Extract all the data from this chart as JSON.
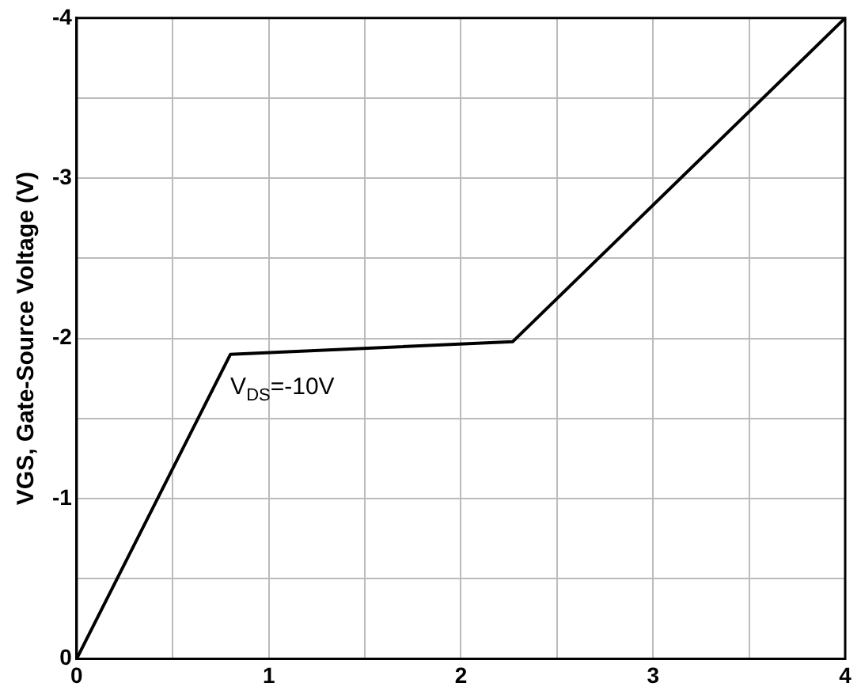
{
  "chart_data": {
    "type": "line",
    "ylabel": "VGS, Gate-Source Voltage (V)",
    "x": [
      0,
      0.8,
      2.27,
      4
    ],
    "series": [
      {
        "color": "#000000",
        "values": [
          0,
          -1.9,
          -1.98,
          -4
        ]
      }
    ],
    "xlim": [
      0,
      4
    ],
    "ylim": [
      0,
      -4
    ],
    "xticks": [
      0,
      {
        "value": 0.5,
        "label": null
      },
      1,
      {
        "value": 1.5,
        "label": null
      },
      2,
      {
        "value": 2.5,
        "label": null
      },
      3,
      {
        "value": 3.5,
        "label": null
      },
      4
    ],
    "yticks": [
      0,
      {
        "value": -0.5,
        "label": null
      },
      -1,
      {
        "value": -1.5,
        "label": null
      },
      -2,
      {
        "value": -2.5,
        "label": null
      },
      -3,
      {
        "value": -3.5,
        "label": null
      },
      -4
    ],
    "grid": true,
    "legend": false,
    "marker": "none",
    "line_style": "solid",
    "annotations": [
      {
        "text": "V$_{DS}$=-10V",
        "x": 0.8,
        "y": -1.9
      }
    ]
  }
}
